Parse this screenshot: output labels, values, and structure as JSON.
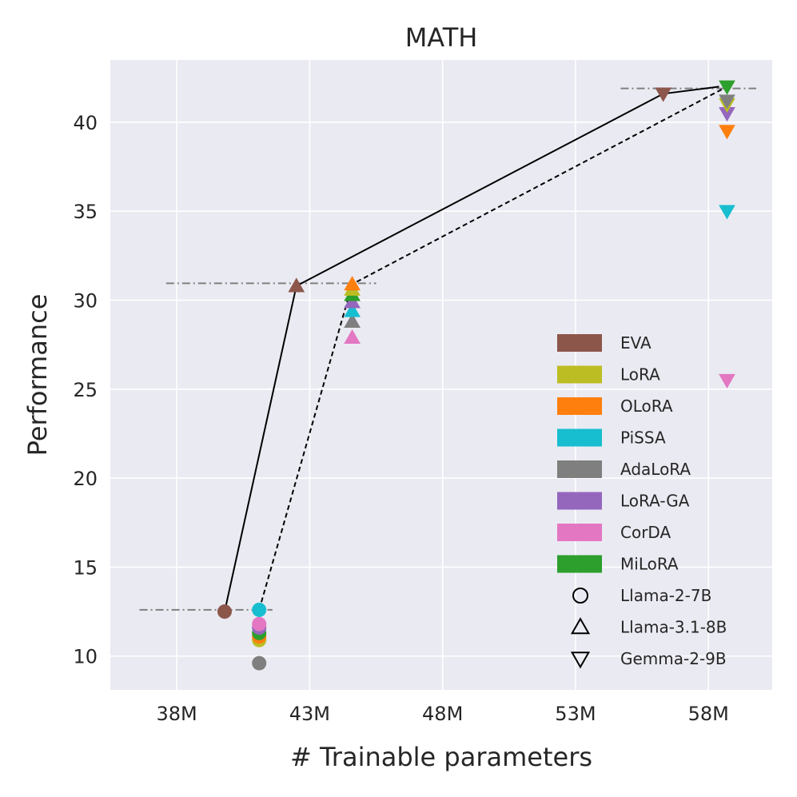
{
  "chart_data": {
    "type": "scatter",
    "title": "MATH",
    "xlabel": "# Trainable parameters",
    "ylabel": "Performance",
    "xlim": [
      35.0,
      59.9
    ],
    "ylim": [
      8.1,
      43.5
    ],
    "xticks": [
      {
        "value": 37.5,
        "label": "38M"
      },
      {
        "value": 42.5,
        "label": "43M"
      },
      {
        "value": 47.5,
        "label": "48M"
      },
      {
        "value": 52.5,
        "label": "53M"
      },
      {
        "value": 57.5,
        "label": "58M"
      }
    ],
    "yticks": [
      {
        "value": 10,
        "label": "10"
      },
      {
        "value": 15,
        "label": "15"
      },
      {
        "value": 20,
        "label": "20"
      },
      {
        "value": 25,
        "label": "25"
      },
      {
        "value": 30,
        "label": "30"
      },
      {
        "value": 35,
        "label": "35"
      },
      {
        "value": 40,
        "label": "40"
      }
    ],
    "grid": true,
    "legend_position": "lower-right",
    "methods": [
      {
        "name": "EVA",
        "color": "#8c564b"
      },
      {
        "name": "LoRA",
        "color": "#bcbd22"
      },
      {
        "name": "OLoRA",
        "color": "#ff7f0e"
      },
      {
        "name": "PiSSA",
        "color": "#17becf"
      },
      {
        "name": "AdaLoRA",
        "color": "#7f7f7f"
      },
      {
        "name": "LoRA-GA",
        "color": "#9467bd"
      },
      {
        "name": "CorDA",
        "color": "#e377c2"
      },
      {
        "name": "MiLoRA",
        "color": "#2c9f2c"
      }
    ],
    "models": [
      {
        "name": "Llama-2-7B",
        "marker": "circle"
      },
      {
        "name": "Llama-3.1-8B",
        "marker": "triangle-up"
      },
      {
        "name": "Gemma-2-9B",
        "marker": "triangle-down"
      }
    ],
    "points": [
      {
        "method": "EVA",
        "model": "Llama-2-7B",
        "x": 39.3,
        "y": 12.5
      },
      {
        "method": "AdaLoRA",
        "model": "Llama-2-7B",
        "x": 40.6,
        "y": 9.6
      },
      {
        "method": "LoRA",
        "model": "Llama-2-7B",
        "x": 40.6,
        "y": 10.9
      },
      {
        "method": "OLoRA",
        "model": "Llama-2-7B",
        "x": 40.6,
        "y": 11.1
      },
      {
        "method": "MiLoRA",
        "model": "Llama-2-7B",
        "x": 40.6,
        "y": 11.3
      },
      {
        "method": "LoRA-GA",
        "model": "Llama-2-7B",
        "x": 40.6,
        "y": 11.6
      },
      {
        "method": "CorDA",
        "model": "Llama-2-7B",
        "x": 40.6,
        "y": 11.8
      },
      {
        "method": "PiSSA",
        "model": "Llama-2-7B",
        "x": 40.6,
        "y": 12.6
      },
      {
        "method": "EVA",
        "model": "Llama-3.1-8B",
        "x": 42.0,
        "y": 30.8
      },
      {
        "method": "CorDA",
        "model": "Llama-3.1-8B",
        "x": 44.1,
        "y": 27.9
      },
      {
        "method": "AdaLoRA",
        "model": "Llama-3.1-8B",
        "x": 44.1,
        "y": 28.8
      },
      {
        "method": "PiSSA",
        "model": "Llama-3.1-8B",
        "x": 44.1,
        "y": 29.4
      },
      {
        "method": "LoRA-GA",
        "model": "Llama-3.1-8B",
        "x": 44.1,
        "y": 29.9
      },
      {
        "method": "MiLoRA",
        "model": "Llama-3.1-8B",
        "x": 44.1,
        "y": 30.3
      },
      {
        "method": "LoRA",
        "model": "Llama-3.1-8B",
        "x": 44.1,
        "y": 30.6
      },
      {
        "method": "OLoRA",
        "model": "Llama-3.1-8B",
        "x": 44.1,
        "y": 30.9
      },
      {
        "method": "EVA",
        "model": "Gemma-2-9B",
        "x": 55.8,
        "y": 41.6
      },
      {
        "method": "CorDA",
        "model": "Gemma-2-9B",
        "x": 58.2,
        "y": 25.5
      },
      {
        "method": "PiSSA",
        "model": "Gemma-2-9B",
        "x": 58.2,
        "y": 35.0
      },
      {
        "method": "OLoRA",
        "model": "Gemma-2-9B",
        "x": 58.2,
        "y": 39.5
      },
      {
        "method": "LoRA-GA",
        "model": "Gemma-2-9B",
        "x": 58.2,
        "y": 40.5
      },
      {
        "method": "LoRA",
        "model": "Gemma-2-9B",
        "x": 58.2,
        "y": 41.0
      },
      {
        "method": "AdaLoRA",
        "model": "Gemma-2-9B",
        "x": 58.2,
        "y": 41.2
      },
      {
        "method": "MiLoRA",
        "model": "Gemma-2-9B",
        "x": 58.2,
        "y": 42.0
      }
    ],
    "frontier_lines": [
      {
        "name": "eva-frontier",
        "style": "solid",
        "points": [
          [
            39.3,
            12.5
          ],
          [
            42.0,
            30.8
          ],
          [
            55.8,
            41.6
          ],
          [
            57.9,
            42.0
          ]
        ]
      },
      {
        "name": "baseline-frontier",
        "style": "dashed",
        "points": [
          [
            40.6,
            12.6
          ],
          [
            44.1,
            30.9
          ],
          [
            58.2,
            42.0
          ]
        ]
      }
    ],
    "reference_lines": [
      {
        "y": 12.6,
        "x_start": 36.1,
        "x_end": 41.1
      },
      {
        "y": 30.95,
        "x_start": 37.1,
        "x_end": 45.0
      },
      {
        "y": 41.9,
        "x_start": 54.2,
        "x_end": 59.3
      }
    ]
  }
}
